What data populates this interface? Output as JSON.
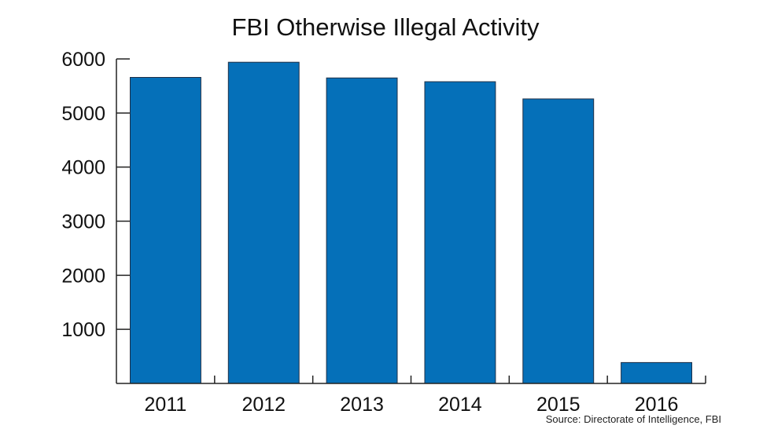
{
  "chart_data": {
    "type": "bar",
    "title": "FBI Otherwise Illegal Activity",
    "xlabel": "",
    "ylabel": "",
    "categories": [
      "2011",
      "2012",
      "2013",
      "2014",
      "2015",
      "2016"
    ],
    "values": [
      5658,
      5939,
      5648,
      5579,
      5261,
      386
    ],
    "ylim": [
      0,
      6000
    ],
    "yticks": [
      1000,
      2000,
      3000,
      4000,
      5000,
      6000
    ],
    "grid": false,
    "legend": "none",
    "colors": {
      "bar": "#0570b9",
      "axis": "#222222",
      "text": "#111111"
    }
  },
  "source": "Source: Directorate of Intelligence, FBI"
}
